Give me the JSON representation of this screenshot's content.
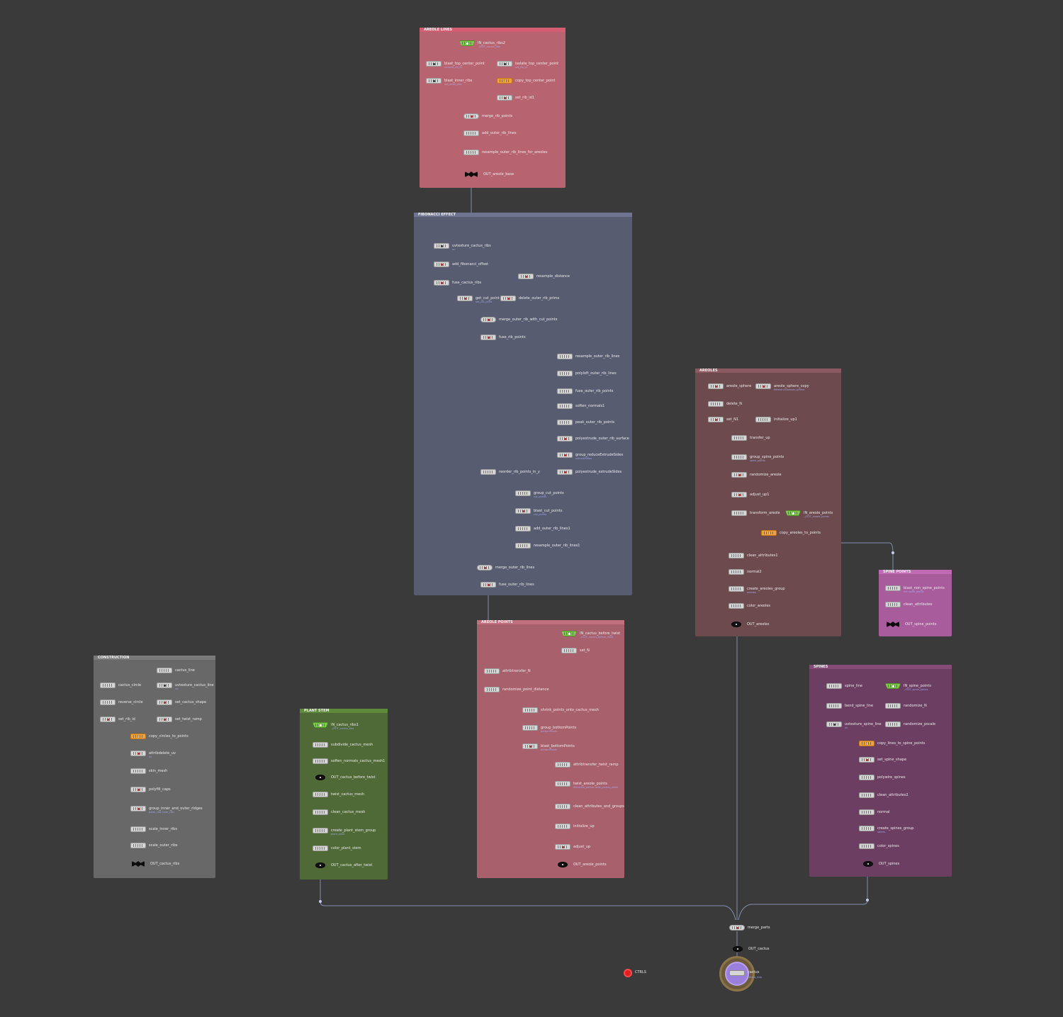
{
  "boxes": [
    {
      "id": "areole-lines",
      "title": "AREOLE LINES",
      "color": "#b86470",
      "title_color": "#d45d72"
    },
    {
      "id": "fibonacci",
      "title": "FIBONACCI EFFECT",
      "color": "#575c70",
      "title_color": "#6f7590"
    },
    {
      "id": "areoles",
      "title": "AREOLES",
      "color": "#6d4a4e",
      "title_color": "#8a5a60"
    },
    {
      "id": "spine-points",
      "title": "SPINE POINTS",
      "color": "#a85c9c",
      "title_color": "#c06ab4"
    },
    {
      "id": "construction",
      "title": "CONSTRUCTION",
      "color": "#686868",
      "title_color": "#7a7a7a"
    },
    {
      "id": "plant-stem",
      "title": "PLANT STEM",
      "color": "#4f6a36",
      "title_color": "#5f8a3c"
    },
    {
      "id": "areole-points",
      "title": "AREOLE POINTS",
      "color": "#a8606c",
      "title_color": "#c0707c"
    },
    {
      "id": "spines",
      "title": "SPINES",
      "color": "#6c3e62",
      "title_color": "#854c78"
    }
  ],
  "nodes": [
    {
      "label": "IN_cactus_ribs2",
      "kind": "in",
      "sub": "../OUT_cactus_ribs"
    },
    {
      "label": "blast_top_center_point",
      "kind": "blast",
      "sub": "remove_rib_id"
    },
    {
      "label": "isolate_top_center_point",
      "kind": "blast",
      "sub": "set_rib_id"
    },
    {
      "label": "blast_inner_ribs",
      "kind": "blast",
      "sub": "set_inner_ribs"
    },
    {
      "label": "copy_top_center_point",
      "kind": "copy",
      "sub": ""
    },
    {
      "label": "set_rib_id1",
      "kind": "op",
      "sub": ""
    },
    {
      "label": "merge_rib_points",
      "kind": "merge",
      "sub": ""
    },
    {
      "label": "add_outer_rib_lines",
      "kind": "plain",
      "sub": ""
    },
    {
      "label": "resample_outer_rib_lines_for_areoles",
      "kind": "plain",
      "sub": ""
    },
    {
      "label": "OUT_areole_base",
      "kind": "null",
      "sub": ""
    },
    {
      "label": "uvtexture_cactus_ribs",
      "kind": "blast",
      "sub": "uv"
    },
    {
      "label": "add_fibonacci_offset",
      "kind": "op",
      "sub": ""
    },
    {
      "label": "resample_distance",
      "kind": "op",
      "sub": ""
    },
    {
      "label": "fuse_cactus_ribs",
      "kind": "op",
      "sub": ""
    },
    {
      "label": "get_cut_point",
      "kind": "op",
      "sub": "set_cut_point"
    },
    {
      "label": "delete_outer_rib_prims",
      "kind": "op",
      "sub": ""
    },
    {
      "label": "merge_outer_rib_with_cut_points",
      "kind": "merge",
      "sub": ""
    },
    {
      "label": "fuse_rib_points",
      "kind": "op",
      "sub": ""
    },
    {
      "label": "resample_outer_rib_lines",
      "kind": "plain",
      "sub": ""
    },
    {
      "label": "polyloft_outer_rib_lines",
      "kind": "plain",
      "sub": ""
    },
    {
      "label": "fuse_outer_rib_points",
      "kind": "plain",
      "sub": ""
    },
    {
      "label": "soften_normals1",
      "kind": "plain",
      "sub": ""
    },
    {
      "label": "peak_outer_rib_points",
      "kind": "plain",
      "sub": ""
    },
    {
      "label": "polyextrude_outer_rib_surface",
      "kind": "op",
      "sub": ""
    },
    {
      "label": "group_reduceExtrudeSides",
      "kind": "op",
      "sub": "extrudeSides"
    },
    {
      "label": "reorder_rib_points_in_y",
      "kind": "plain",
      "sub": ""
    },
    {
      "label": "polyextrude_extrudeSides",
      "kind": "op",
      "sub": ""
    },
    {
      "label": "group_cut_points",
      "kind": "plain",
      "sub": "cut_points"
    },
    {
      "label": "blast_cut_points",
      "kind": "op",
      "sub": "cut_points"
    },
    {
      "label": "add_outer_rib_lines1",
      "kind": "plain",
      "sub": ""
    },
    {
      "label": "resample_outer_rib_lines1",
      "kind": "plain",
      "sub": ""
    },
    {
      "label": "merge_outer_rib_lines",
      "kind": "merge",
      "sub": ""
    },
    {
      "label": "fuse_outer_rib_lines",
      "kind": "op",
      "sub": ""
    },
    {
      "label": "areole_sphere",
      "kind": "op",
      "sub": ""
    },
    {
      "label": "areole_sphere_copy",
      "kind": "op",
      "sub": "Reference/areole_sphere"
    },
    {
      "label": "delete_N",
      "kind": "plain",
      "sub": ""
    },
    {
      "label": "set_N1",
      "kind": "op",
      "sub": ""
    },
    {
      "label": "initialize_up1",
      "kind": "plain",
      "sub": ""
    },
    {
      "label": "transfer_up",
      "kind": "plain",
      "sub": ""
    },
    {
      "label": "group_spine_points",
      "kind": "plain",
      "sub": "spine_points"
    },
    {
      "label": "randomize_areole",
      "kind": "op",
      "sub": ""
    },
    {
      "label": "adjust_up1",
      "kind": "op",
      "sub": ""
    },
    {
      "label": "transform_areole",
      "kind": "plain",
      "sub": ""
    },
    {
      "label": "IN_areole_points",
      "kind": "in",
      "sub": "../OUT_areole_points"
    },
    {
      "label": "copy_areoles_to_points",
      "kind": "copy",
      "sub": ""
    },
    {
      "label": "clean_attributes1",
      "kind": "plain",
      "sub": ""
    },
    {
      "label": "normal2",
      "kind": "plain",
      "sub": ""
    },
    {
      "label": "create_areoles_group",
      "kind": "plain",
      "sub": "areoles"
    },
    {
      "label": "color_areoles",
      "kind": "plain",
      "sub": ""
    },
    {
      "label": "OUT_areoles",
      "kind": "out",
      "sub": ""
    },
    {
      "label": "blast_non_spine_points",
      "kind": "plain",
      "sub": "not spine_points"
    },
    {
      "label": "clean_attributes",
      "kind": "plain",
      "sub": ""
    },
    {
      "label": "OUT_spine_points",
      "kind": "null",
      "sub": ""
    },
    {
      "label": "cactus_line",
      "kind": "plain",
      "sub": ""
    },
    {
      "label": "cactus_circle",
      "kind": "plain",
      "sub": ""
    },
    {
      "label": "uvtexture_cactus_line",
      "kind": "blast",
      "sub": "uv"
    },
    {
      "label": "reverse_circle",
      "kind": "plain",
      "sub": ""
    },
    {
      "label": "set_cactus_shape",
      "kind": "op",
      "sub": ""
    },
    {
      "label": "set_rib_id",
      "kind": "op",
      "sub": ""
    },
    {
      "label": "set_twist_ramp",
      "kind": "op",
      "sub": ""
    },
    {
      "label": "copy_circles_to_points",
      "kind": "copy",
      "sub": ""
    },
    {
      "label": "attribdelete_uv",
      "kind": "op",
      "sub": "uv"
    },
    {
      "label": "skin_mesh",
      "kind": "plain",
      "sub": ""
    },
    {
      "label": "polyfill_caps",
      "kind": "op",
      "sub": ""
    },
    {
      "label": "group_inner_and_outer_ridges",
      "kind": "op",
      "sub": "outer_ribs\ninner_ribs"
    },
    {
      "label": "scale_inner_ribs",
      "kind": "plain",
      "sub": ""
    },
    {
      "label": "scale_outer_ribs",
      "kind": "plain",
      "sub": ""
    },
    {
      "label": "OUT_cactus_ribs",
      "kind": "null",
      "sub": ""
    },
    {
      "label": "IN_cactus_ribs1",
      "kind": "in",
      "sub": "../OUT_cactus_ribs"
    },
    {
      "label": "subdivide_cactus_mesh",
      "kind": "plain",
      "sub": ""
    },
    {
      "label": "soften_normals_cactus_mesh1",
      "kind": "plain",
      "sub": ""
    },
    {
      "label": "OUT_cactus_before_twist",
      "kind": "out",
      "sub": ""
    },
    {
      "label": "twist_cactus_mesh",
      "kind": "plain",
      "sub": ""
    },
    {
      "label": "clean_cactus_mesh",
      "kind": "plain",
      "sub": ""
    },
    {
      "label": "create_plant_stem_group",
      "kind": "plain",
      "sub": "plant_stem"
    },
    {
      "label": "color_plant_stem",
      "kind": "plain",
      "sub": ""
    },
    {
      "label": "OUT_cactus_after_twist",
      "kind": "out",
      "sub": ""
    },
    {
      "label": "IN_cactus_before_twist",
      "kind": "in",
      "sub": "../OUT_cactus_before_twist"
    },
    {
      "label": "set_N",
      "kind": "plain",
      "sub": ""
    },
    {
      "label": "attribtransfer_N",
      "kind": "plain",
      "sub": ""
    },
    {
      "label": "randomize_point_distance",
      "kind": "plain",
      "sub": ""
    },
    {
      "label": "shrink_points_onto_cactus_mesh",
      "kind": "plain",
      "sub": ""
    },
    {
      "label": "group_bottomPoints",
      "kind": "plain",
      "sub": "bottomPoints"
    },
    {
      "label": "blast_bottomPoints",
      "kind": "op",
      "sub": "bottomPoints"
    },
    {
      "label": "attribtransfer_twist_ramp",
      "kind": "plain",
      "sub": ""
    },
    {
      "label": "twist_areole_points",
      "kind": "plain",
      "sub": "IN/cactus_before\ntwist_cactus_mesh"
    },
    {
      "label": "clean_attributes_and_groups",
      "kind": "plain",
      "sub": ""
    },
    {
      "label": "initialize_up",
      "kind": "plain",
      "sub": ""
    },
    {
      "label": "adjust_up",
      "kind": "op",
      "sub": ""
    },
    {
      "label": "OUT_areole_points",
      "kind": "out",
      "sub": ""
    },
    {
      "label": "spine_line",
      "kind": "plain",
      "sub": ""
    },
    {
      "label": "IN_spine_points",
      "kind": "in",
      "sub": "../OUT_spine_points"
    },
    {
      "label": "bend_spine_line",
      "kind": "plain",
      "sub": ""
    },
    {
      "label": "randomize_N",
      "kind": "plain",
      "sub": ""
    },
    {
      "label": "uvtexture_spine_line",
      "kind": "blast",
      "sub": "uv"
    },
    {
      "label": "randomize_pscale",
      "kind": "plain",
      "sub": ""
    },
    {
      "label": "copy_lines_to_spine_points",
      "kind": "copy",
      "sub": ""
    },
    {
      "label": "set_spine_shape",
      "kind": "op",
      "sub": ""
    },
    {
      "label": "polywire_spines",
      "kind": "plain",
      "sub": ""
    },
    {
      "label": "clean_attributes2",
      "kind": "plain",
      "sub": ""
    },
    {
      "label": "normal",
      "kind": "plain",
      "sub": ""
    },
    {
      "label": "create_spines_group",
      "kind": "plain",
      "sub": "spines"
    },
    {
      "label": "color_spines",
      "kind": "plain",
      "sub": ""
    },
    {
      "label": "OUT_spines",
      "kind": "out",
      "sub": ""
    },
    {
      "label": "merge_parts",
      "kind": "merge",
      "sub": ""
    },
    {
      "label": "OUT_cactus",
      "kind": "out",
      "sub": ""
    }
  ],
  "ctrl": {
    "label": "CTRLS",
    "color": "#e02020"
  },
  "final_node": {
    "label": "cactus",
    "sub": "cactus_hda"
  },
  "colors": {
    "background": "#3a3a3a",
    "wire": "#8f9fc4",
    "accent_copy": "#f1a23a",
    "accent_in": "#7ccd49"
  }
}
